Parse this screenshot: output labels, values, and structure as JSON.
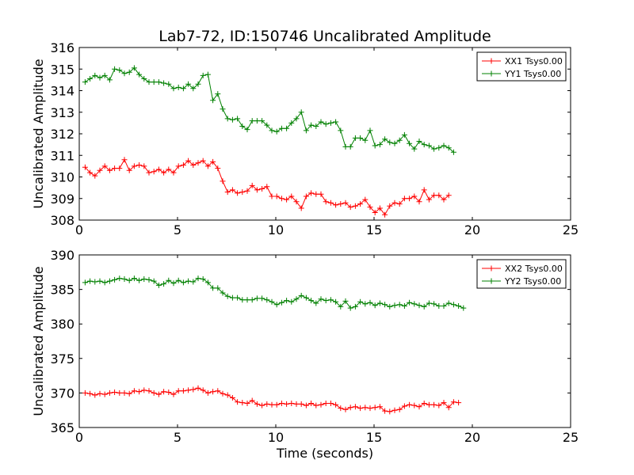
{
  "chart_data": [
    {
      "type": "line",
      "title": "Lab7-72, ID:150746 Uncalibrated Amplitude",
      "xlabel": "",
      "ylabel": "Uncalibrated Amplitude",
      "xlim": [
        0,
        25
      ],
      "ylim": [
        308,
        316
      ],
      "xticks": [
        "0",
        "5",
        "10",
        "15",
        "20",
        "25"
      ],
      "yticks": [
        "308",
        "309",
        "310",
        "311",
        "312",
        "313",
        "314",
        "315",
        "316"
      ],
      "legend": "top-right",
      "x_start": 0.3,
      "x_step": 0.25,
      "series": [
        {
          "name": "XX1 Tsys0.00",
          "color": "#ff0000",
          "values": [
            310.45,
            310.2,
            310.05,
            310.3,
            310.5,
            310.3,
            310.4,
            310.4,
            310.8,
            310.3,
            310.5,
            310.55,
            310.5,
            310.2,
            310.25,
            310.35,
            310.2,
            310.35,
            310.2,
            310.5,
            310.55,
            310.75,
            310.55,
            310.65,
            310.75,
            310.5,
            310.7,
            310.4,
            309.8,
            309.3,
            309.4,
            309.25,
            309.3,
            309.35,
            309.6,
            309.4,
            309.45,
            309.55,
            309.1,
            309.1,
            309.0,
            308.95,
            309.1,
            308.85,
            308.55,
            309.1,
            309.25,
            309.2,
            309.2,
            308.85,
            308.8,
            308.7,
            308.75,
            308.8,
            308.6,
            308.65,
            308.75,
            308.95,
            308.6,
            308.35,
            308.55,
            308.25,
            308.65,
            308.8,
            308.75,
            309.0,
            309.0,
            309.1,
            308.85,
            309.4,
            308.95,
            309.15,
            309.15,
            308.95,
            309.15
          ]
        },
        {
          "name": "YY1 Tsys0.00",
          "color": "#008000",
          "values": [
            314.4,
            314.55,
            314.7,
            314.6,
            314.7,
            314.5,
            315.0,
            314.95,
            314.8,
            314.85,
            315.05,
            314.75,
            314.55,
            314.4,
            314.4,
            314.4,
            314.35,
            314.3,
            314.1,
            314.15,
            314.1,
            314.3,
            314.1,
            314.3,
            314.7,
            314.75,
            313.55,
            313.85,
            313.15,
            312.7,
            312.65,
            312.7,
            312.35,
            312.2,
            312.6,
            312.6,
            312.6,
            312.4,
            312.15,
            312.1,
            312.25,
            312.25,
            312.5,
            312.7,
            313.0,
            312.15,
            312.4,
            312.35,
            312.55,
            312.45,
            312.5,
            312.55,
            312.15,
            311.4,
            311.4,
            311.8,
            311.8,
            311.7,
            312.15,
            311.45,
            311.5,
            311.75,
            311.6,
            311.55,
            311.7,
            311.95,
            311.55,
            311.3,
            311.65,
            311.5,
            311.45,
            311.3,
            311.35,
            311.45,
            311.35,
            311.15
          ]
        }
      ]
    },
    {
      "type": "line",
      "title": "",
      "xlabel": "Time (seconds)",
      "ylabel": "Uncalibrated Amplitude",
      "xlim": [
        0,
        25
      ],
      "ylim": [
        365,
        390
      ],
      "xticks": [
        "0",
        "5",
        "10",
        "15",
        "20",
        "25"
      ],
      "yticks": [
        "365",
        "370",
        "375",
        "380",
        "385",
        "390"
      ],
      "legend": "top-right",
      "x_start": 0.3,
      "x_step": 0.25,
      "series": [
        {
          "name": "XX2 Tsys0.00",
          "color": "#ff0000",
          "values": [
            370.0,
            369.9,
            369.7,
            369.9,
            369.8,
            370.0,
            370.1,
            370.0,
            370.0,
            369.9,
            370.3,
            370.2,
            370.4,
            370.3,
            370.0,
            369.8,
            370.2,
            370.1,
            369.8,
            370.3,
            370.3,
            370.4,
            370.5,
            370.7,
            370.4,
            370.0,
            370.2,
            370.3,
            369.9,
            369.7,
            369.3,
            368.7,
            368.6,
            368.5,
            368.9,
            368.4,
            368.2,
            368.4,
            368.3,
            368.3,
            368.5,
            368.4,
            368.5,
            368.4,
            368.4,
            368.2,
            368.5,
            368.2,
            368.3,
            368.5,
            368.5,
            368.3,
            367.8,
            367.6,
            367.9,
            368.0,
            367.8,
            367.9,
            367.8,
            367.9,
            368.0,
            367.4,
            367.3,
            367.5,
            367.6,
            368.1,
            368.3,
            368.2,
            368.0,
            368.5,
            368.3,
            368.3,
            368.2,
            368.6,
            367.9,
            368.7,
            368.6
          ]
        },
        {
          "name": "YY2 Tsys0.00",
          "color": "#008000",
          "values": [
            386.0,
            386.2,
            386.1,
            386.2,
            386.0,
            386.2,
            386.4,
            386.6,
            386.5,
            386.3,
            386.6,
            386.3,
            386.5,
            386.4,
            386.2,
            385.6,
            385.8,
            386.3,
            385.9,
            386.3,
            386.0,
            386.2,
            386.1,
            386.6,
            386.5,
            386.0,
            385.2,
            385.2,
            384.5,
            384.0,
            383.8,
            383.8,
            383.5,
            383.5,
            383.5,
            383.7,
            383.7,
            383.5,
            383.2,
            382.8,
            383.1,
            383.4,
            383.2,
            383.6,
            384.1,
            383.8,
            383.4,
            383.0,
            383.6,
            383.4,
            383.5,
            383.2,
            382.5,
            383.3,
            382.3,
            382.5,
            383.2,
            382.9,
            383.1,
            382.7,
            383.0,
            382.8,
            382.5,
            382.7,
            382.8,
            382.6,
            383.1,
            382.9,
            382.7,
            382.5,
            383.0,
            382.9,
            382.6,
            382.6,
            383.0,
            382.8,
            382.6,
            382.3
          ]
        }
      ]
    }
  ]
}
